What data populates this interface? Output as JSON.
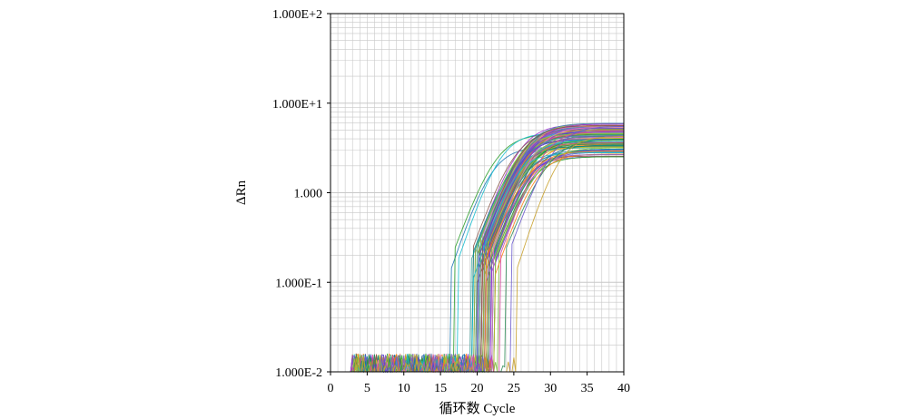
{
  "chart_data": {
    "type": "line",
    "title": "",
    "xlabel": "循环数 Cycle",
    "ylabel": "ΔRn",
    "xlim": [
      0,
      40
    ],
    "ylim": [
      0.01,
      100
    ],
    "yscale": "log",
    "x_ticks": [
      0,
      5,
      10,
      15,
      20,
      25,
      30,
      35,
      40
    ],
    "y_ticks": [
      {
        "value": 0.01,
        "label": "1.000E-2"
      },
      {
        "value": 0.1,
        "label": "1.000E-1"
      },
      {
        "value": 1,
        "label": "1.000"
      },
      {
        "value": 10,
        "label": "1.000E+1"
      },
      {
        "value": 100,
        "label": "1.000E+2"
      }
    ],
    "grid": true,
    "legend": "none",
    "series_summary": {
      "count": 95,
      "threshold_cycle_range": [
        20.5,
        29.5
      ],
      "plateau_delta_rn_range": [
        2.5,
        6
      ],
      "baseline_noise_max": 0.016
    },
    "colors": {
      "palette": [
        "#1f77b4",
        "#2ca02c",
        "#17becf",
        "#9467bd",
        "#bcbd22",
        "#e377c2",
        "#8c564b",
        "#ff7f0e",
        "#3fa9a0",
        "#5b3fd6",
        "#a0c83a",
        "#d44a9a",
        "#2e8b57",
        "#6a5acd",
        "#c8a02a",
        "#008b8b",
        "#9932cc",
        "#7fbf3f",
        "#cc5f5f",
        "#4682b4"
      ],
      "grid": "#c8c8c8",
      "axis": "#000000"
    }
  }
}
